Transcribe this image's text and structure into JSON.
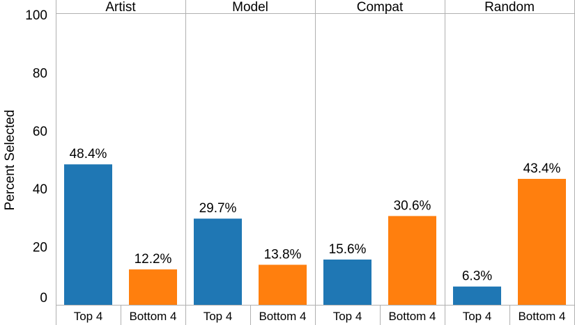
{
  "chart_data": {
    "type": "bar",
    "ylabel": "Percent Selected",
    "ylim": [
      0,
      100
    ],
    "yticks": [
      0,
      20,
      40,
      60,
      80,
      100
    ],
    "grid": false,
    "value_suffix": "%",
    "colors": {
      "Top 4": "#1f77b4",
      "Bottom 4": "#ff7f0e"
    },
    "panels": [
      {
        "name": "Artist",
        "categories": [
          "Top 4",
          "Bottom 4"
        ],
        "values": [
          48.4,
          12.2
        ]
      },
      {
        "name": "Model",
        "categories": [
          "Top 4",
          "Bottom 4"
        ],
        "values": [
          29.7,
          13.8
        ]
      },
      {
        "name": "Compat",
        "categories": [
          "Top 4",
          "Bottom 4"
        ],
        "values": [
          15.6,
          30.6
        ]
      },
      {
        "name": "Random",
        "categories": [
          "Top 4",
          "Bottom 4"
        ],
        "values": [
          6.3,
          43.4
        ]
      }
    ]
  }
}
